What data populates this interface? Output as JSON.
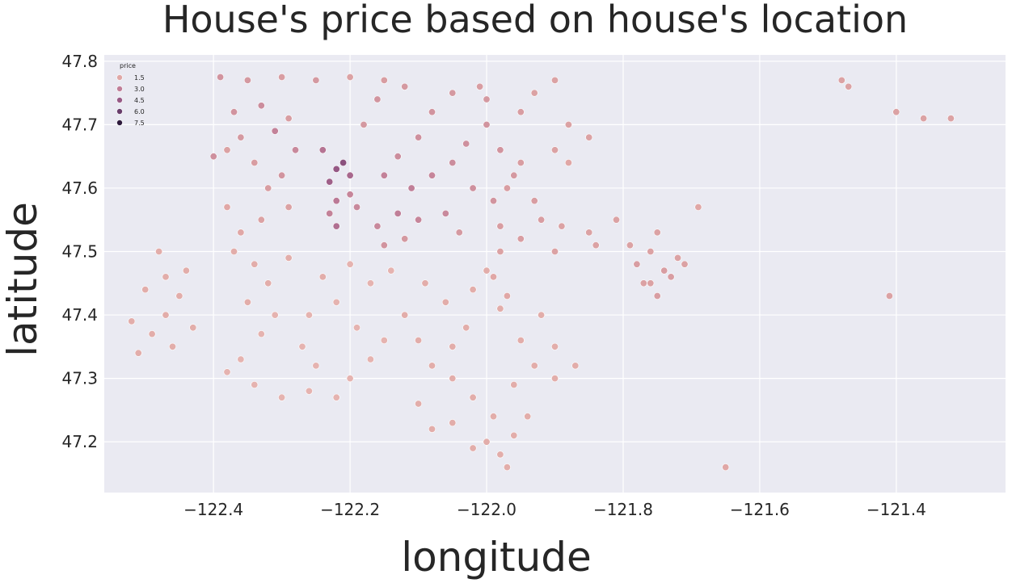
{
  "chart_data": {
    "type": "scatter",
    "title": "House's price based on house's location",
    "xlabel": "longitude",
    "ylabel": "latitude",
    "xlim": [
      -122.56,
      -121.24
    ],
    "ylim": [
      47.12,
      47.81
    ],
    "xticks": [
      -122.4,
      -122.2,
      -122.0,
      -121.8,
      -121.6,
      -121.4
    ],
    "xtick_labels": [
      "−122.4",
      "−122.2",
      "−122.0",
      "−121.8",
      "−121.6",
      "−121.4"
    ],
    "yticks": [
      47.2,
      47.3,
      47.4,
      47.5,
      47.6,
      47.7,
      47.8
    ],
    "ytick_labels": [
      "47.2",
      "47.3",
      "47.4",
      "47.5",
      "47.6",
      "47.7",
      "47.8"
    ],
    "grid": true,
    "background": "#eaeaf2",
    "legend": {
      "title": "price",
      "position": "top-left",
      "entries": [
        {
          "label": "1.5",
          "color": "#e0a8a6"
        },
        {
          "label": "3.0",
          "color": "#c07e98"
        },
        {
          "label": "4.5",
          "color": "#985a86"
        },
        {
          "label": "6.0",
          "color": "#683c6a"
        },
        {
          "label": "7.5",
          "color": "#2e1a3c"
        }
      ]
    },
    "hue_scale_1e6": [
      0.08,
      7.7
    ],
    "point_color_scale": [
      "#f1cfc8",
      "#e0a8a6",
      "#c07e98",
      "#985a86",
      "#683c6a",
      "#2e1a3c"
    ],
    "points": [
      [
        -122.39,
        47.775,
        0.9
      ],
      [
        -122.35,
        47.77,
        0.8
      ],
      [
        -122.3,
        47.775,
        0.7
      ],
      [
        -122.25,
        47.77,
        0.8
      ],
      [
        -122.2,
        47.775,
        0.6
      ],
      [
        -122.15,
        47.77,
        0.7
      ],
      [
        -122.37,
        47.72,
        0.9
      ],
      [
        -122.33,
        47.73,
        1.1
      ],
      [
        -122.29,
        47.71,
        0.7
      ],
      [
        -122.36,
        47.68,
        0.8
      ],
      [
        -122.31,
        47.69,
        1.4
      ],
      [
        -122.38,
        47.66,
        0.6
      ],
      [
        -122.4,
        47.65,
        1.0
      ],
      [
        -122.34,
        47.64,
        0.7
      ],
      [
        -122.22,
        47.63,
        3.2
      ],
      [
        -122.23,
        47.61,
        2.8
      ],
      [
        -122.21,
        47.64,
        3.6
      ],
      [
        -122.2,
        47.62,
        2.4
      ],
      [
        -122.24,
        47.66,
        1.9
      ],
      [
        -122.22,
        47.58,
        1.7
      ],
      [
        -122.23,
        47.56,
        1.4
      ],
      [
        -122.22,
        47.54,
        2.1
      ],
      [
        -122.2,
        47.59,
        1.3
      ],
      [
        -122.19,
        47.57,
        1.2
      ],
      [
        -122.28,
        47.66,
        1.2
      ],
      [
        -122.3,
        47.62,
        0.9
      ],
      [
        -122.32,
        47.6,
        0.7
      ],
      [
        -122.29,
        47.57,
        0.6
      ],
      [
        -122.33,
        47.55,
        0.6
      ],
      [
        -122.36,
        47.53,
        0.5
      ],
      [
        -122.38,
        47.57,
        0.5
      ],
      [
        -122.37,
        47.5,
        0.4
      ],
      [
        -122.34,
        47.48,
        0.4
      ],
      [
        -122.32,
        47.45,
        0.4
      ],
      [
        -122.29,
        47.49,
        0.4
      ],
      [
        -122.35,
        47.42,
        0.4
      ],
      [
        -122.31,
        47.4,
        0.3
      ],
      [
        -122.33,
        47.37,
        0.3
      ],
      [
        -122.36,
        47.33,
        0.3
      ],
      [
        -122.38,
        47.31,
        0.3
      ],
      [
        -122.34,
        47.29,
        0.3
      ],
      [
        -122.3,
        47.27,
        0.3
      ],
      [
        -122.26,
        47.28,
        0.3
      ],
      [
        -122.22,
        47.27,
        0.3
      ],
      [
        -122.2,
        47.3,
        0.3
      ],
      [
        -122.17,
        47.33,
        0.3
      ],
      [
        -122.15,
        47.36,
        0.3
      ],
      [
        -122.19,
        47.38,
        0.3
      ],
      [
        -122.22,
        47.42,
        0.3
      ],
      [
        -122.17,
        47.45,
        0.3
      ],
      [
        -122.14,
        47.47,
        0.3
      ],
      [
        -122.2,
        47.48,
        0.3
      ],
      [
        -122.24,
        47.46,
        0.4
      ],
      [
        -122.26,
        47.4,
        0.3
      ],
      [
        -122.27,
        47.35,
        0.3
      ],
      [
        -122.25,
        47.32,
        0.3
      ],
      [
        -122.12,
        47.4,
        0.4
      ],
      [
        -122.1,
        47.36,
        0.4
      ],
      [
        -122.08,
        47.32,
        0.4
      ],
      [
        -122.05,
        47.35,
        0.4
      ],
      [
        -122.03,
        47.38,
        0.4
      ],
      [
        -122.06,
        47.42,
        0.4
      ],
      [
        -122.09,
        47.45,
        0.4
      ],
      [
        -122.02,
        47.44,
        0.4
      ],
      [
        -122.0,
        47.47,
        0.4
      ],
      [
        -121.98,
        47.41,
        0.4
      ],
      [
        -122.18,
        47.7,
        0.8
      ],
      [
        -122.16,
        47.74,
        0.9
      ],
      [
        -122.12,
        47.76,
        0.8
      ],
      [
        -122.08,
        47.72,
        0.9
      ],
      [
        -122.1,
        47.68,
        1.0
      ],
      [
        -122.13,
        47.65,
        1.1
      ],
      [
        -122.15,
        47.62,
        1.4
      ],
      [
        -122.11,
        47.6,
        1.5
      ],
      [
        -122.08,
        47.62,
        1.3
      ],
      [
        -122.05,
        47.64,
        1.1
      ],
      [
        -122.03,
        47.67,
        1.0
      ],
      [
        -122.0,
        47.7,
        0.9
      ],
      [
        -121.98,
        47.66,
        0.9
      ],
      [
        -122.02,
        47.6,
        1.0
      ],
      [
        -121.99,
        47.58,
        0.9
      ],
      [
        -121.96,
        47.62,
        0.8
      ],
      [
        -122.06,
        47.56,
        1.2
      ],
      [
        -122.1,
        47.55,
        1.3
      ],
      [
        -122.13,
        47.56,
        1.5
      ],
      [
        -122.16,
        47.54,
        1.2
      ],
      [
        -122.15,
        47.51,
        0.9
      ],
      [
        -122.12,
        47.52,
        0.8
      ],
      [
        -122.04,
        47.53,
        0.8
      ],
      [
        -121.98,
        47.54,
        0.7
      ],
      [
        -121.95,
        47.52,
        0.7
      ],
      [
        -121.92,
        47.55,
        0.7
      ],
      [
        -121.89,
        47.54,
        0.6
      ],
      [
        -121.85,
        47.53,
        0.6
      ],
      [
        -121.9,
        47.5,
        0.6
      ],
      [
        -121.93,
        47.58,
        0.7
      ],
      [
        -122.05,
        47.75,
        0.8
      ],
      [
        -122.01,
        47.76,
        0.7
      ],
      [
        -122.0,
        47.74,
        0.8
      ],
      [
        -121.95,
        47.72,
        0.7
      ],
      [
        -121.93,
        47.75,
        0.6
      ],
      [
        -121.9,
        47.77,
        0.6
      ],
      [
        -121.88,
        47.7,
        0.6
      ],
      [
        -121.9,
        47.66,
        0.6
      ],
      [
        -121.95,
        47.64,
        0.7
      ],
      [
        -121.97,
        47.6,
        0.7
      ],
      [
        -121.85,
        47.68,
        0.6
      ],
      [
        -121.88,
        47.64,
        0.5
      ],
      [
        -122.05,
        47.3,
        0.4
      ],
      [
        -122.02,
        47.27,
        0.4
      ],
      [
        -121.99,
        47.24,
        0.4
      ],
      [
        -122.0,
        47.2,
        0.4
      ],
      [
        -121.98,
        47.18,
        0.4
      ],
      [
        -122.02,
        47.19,
        0.4
      ],
      [
        -121.96,
        47.21,
        0.4
      ],
      [
        -121.94,
        47.24,
        0.4
      ],
      [
        -121.96,
        47.29,
        0.4
      ],
      [
        -121.93,
        47.32,
        0.4
      ],
      [
        -121.95,
        47.36,
        0.4
      ],
      [
        -122.1,
        47.26,
        0.4
      ],
      [
        -122.08,
        47.22,
        0.4
      ],
      [
        -122.05,
        47.23,
        0.4
      ],
      [
        -121.97,
        47.16,
        0.4
      ],
      [
        -121.99,
        47.46,
        0.5
      ],
      [
        -121.97,
        47.43,
        0.5
      ],
      [
        -121.92,
        47.4,
        0.4
      ],
      [
        -121.9,
        47.35,
        0.4
      ],
      [
        -121.9,
        47.3,
        0.4
      ],
      [
        -121.87,
        47.32,
        0.4
      ],
      [
        -121.98,
        47.5,
        0.6
      ],
      [
        -122.48,
        47.5,
        0.4
      ],
      [
        -122.47,
        47.46,
        0.4
      ],
      [
        -122.45,
        47.43,
        0.4
      ],
      [
        -122.47,
        47.4,
        0.4
      ],
      [
        -122.49,
        47.37,
        0.4
      ],
      [
        -122.46,
        47.35,
        0.4
      ],
      [
        -122.5,
        47.44,
        0.4
      ],
      [
        -122.51,
        47.34,
        0.4
      ],
      [
        -122.43,
        47.38,
        0.4
      ],
      [
        -122.44,
        47.47,
        0.4
      ],
      [
        -122.52,
        47.39,
        0.4
      ],
      [
        -121.78,
        47.48,
        0.7
      ],
      [
        -121.76,
        47.5,
        0.6
      ],
      [
        -121.74,
        47.47,
        0.7
      ],
      [
        -121.77,
        47.45,
        0.6
      ],
      [
        -121.72,
        47.49,
        0.6
      ],
      [
        -121.75,
        47.53,
        0.6
      ],
      [
        -121.73,
        47.46,
        0.7
      ],
      [
        -121.79,
        47.51,
        0.6
      ],
      [
        -121.71,
        47.48,
        0.6
      ],
      [
        -121.69,
        47.57,
        0.5
      ],
      [
        -121.48,
        47.77,
        0.6
      ],
      [
        -121.47,
        47.76,
        0.6
      ],
      [
        -121.4,
        47.72,
        0.6
      ],
      [
        -121.36,
        47.71,
        0.6
      ],
      [
        -121.32,
        47.71,
        0.6
      ],
      [
        -121.41,
        47.43,
        0.6
      ],
      [
        -121.65,
        47.16,
        0.5
      ],
      [
        -121.81,
        47.55,
        0.6
      ],
      [
        -121.84,
        47.51,
        0.6
      ],
      [
        -121.75,
        47.43,
        0.7
      ],
      [
        -121.76,
        47.45,
        0.6
      ]
    ]
  }
}
